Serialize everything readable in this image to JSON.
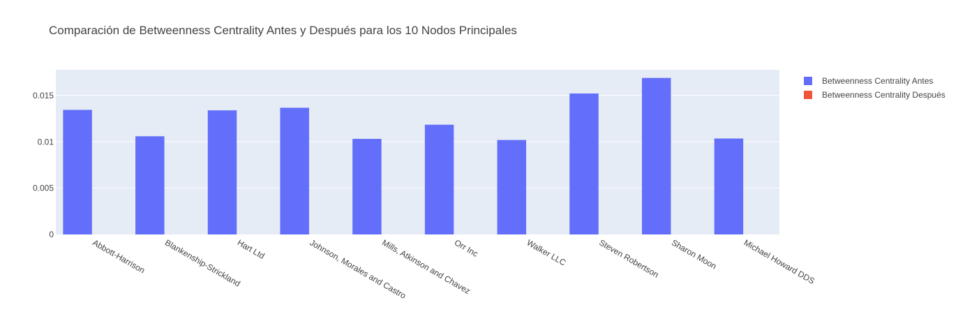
{
  "title": "Comparación de Betweenness Centrality Antes y Después para los 10 Nodos Principales",
  "legend": [
    {
      "name": "Betweenness Centrality Antes",
      "color": "#636efa"
    },
    {
      "name": "Betweenness Centrality Después",
      "color": "#ef553b"
    }
  ],
  "chart_data": {
    "type": "bar",
    "title": "Comparación de Betweenness Centrality Antes y Después para los 10 Nodos Principales",
    "xlabel": "",
    "ylabel": "",
    "categories": [
      "Abbott-Harrison",
      "Blankenship-Strickland",
      "Hart Ltd",
      "Johnson, Morales and Castro",
      "Mills, Atkinson and Chavez",
      "Orr Inc",
      "Walker LLC",
      "Steven Robertson",
      "Sharon Moon",
      "Michael Howard DDS"
    ],
    "series": [
      {
        "name": "Betweenness Centrality Antes",
        "color": "#636efa",
        "values": [
          0.01345,
          0.0106,
          0.0134,
          0.01368,
          0.01032,
          0.01185,
          0.0102,
          0.01522,
          0.0169,
          0.01036
        ]
      },
      {
        "name": "Betweenness Centrality Después",
        "color": "#ef553b",
        "values": [
          0,
          0,
          0,
          0,
          0,
          0,
          0,
          0,
          0,
          0
        ]
      }
    ],
    "yticks": [
      0,
      0.005,
      0.01,
      0.015
    ],
    "ytick_labels": [
      "0",
      "0.005",
      "0.01",
      "0.015"
    ],
    "ylim": [
      0,
      0.01778
    ],
    "grid": true,
    "legend_position": "top-right"
  }
}
